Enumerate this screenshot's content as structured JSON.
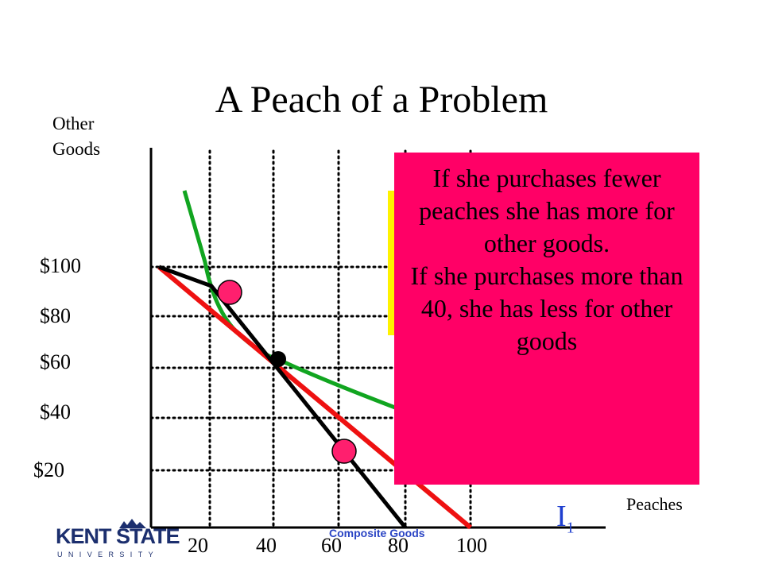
{
  "slide": {
    "title": "A Peach of a Problem",
    "y_axis_title_line1": "Other",
    "y_axis_title_line2": "Goods",
    "x_axis_title": "Peaches",
    "indifference_label_main": "I",
    "indifference_label_sub": "1",
    "footer_caption": "Composite Goods",
    "y_ticks": [
      "$100",
      "$80",
      "$60",
      "$40",
      "$20"
    ],
    "x_ticks": [
      "20",
      "40",
      "60",
      "80",
      "100"
    ],
    "callout_line1": "If she purchases fewer peaches she has more for other goods.",
    "callout_line2": "If she purchases more than 40, she has less for other goods",
    "logo_text": "KENT STATE",
    "logo_subtext": "UNIVERSITY"
  },
  "colors": {
    "red_budget_line": "#ee1111",
    "black_budget_line": "#000000",
    "green_curve": "#11a520",
    "callout_bg": "#ff0066",
    "yellow_box": "#fff200",
    "pink_points": "#ff1f6e",
    "indifference_label": "#1f3fcf",
    "kent_blue": "#1c2f6e"
  }
}
